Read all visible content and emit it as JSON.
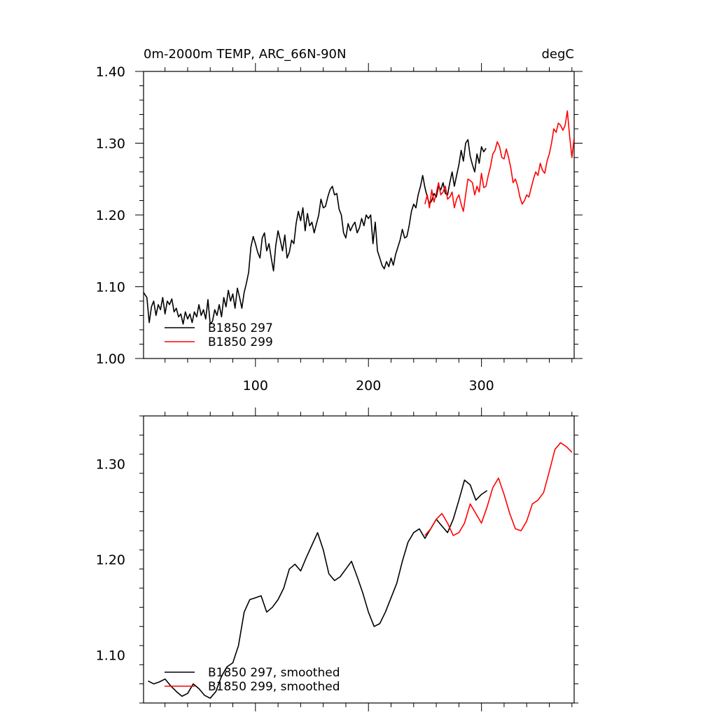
{
  "chart_data": [
    {
      "type": "line",
      "title": "0m-2000m TEMP, ARC_66N-90N",
      "units": "degC",
      "xlabel": "",
      "ylabel": "",
      "xlim": [
        1,
        382
      ],
      "ylim": [
        1.0,
        1.4
      ],
      "xticks": [
        100,
        200,
        300
      ],
      "xtick_labels": [
        "100",
        "200",
        "300"
      ],
      "yticks": [
        1.0,
        1.1,
        1.2,
        1.3,
        1.4
      ],
      "ytick_labels": [
        "1.00",
        "1.10",
        "1.20",
        "1.30",
        "1.40"
      ],
      "legend_position": "bottom-left",
      "series": [
        {
          "name": "B1850 297",
          "color": "#000000",
          "x": [
            1,
            4,
            6,
            8,
            10,
            12,
            14,
            16,
            18,
            20,
            22,
            24,
            26,
            28,
            30,
            32,
            34,
            36,
            38,
            40,
            42,
            44,
            46,
            48,
            50,
            52,
            54,
            56,
            58,
            60,
            62,
            64,
            66,
            68,
            70,
            72,
            74,
            76,
            78,
            80,
            82,
            84,
            86,
            88,
            90,
            92,
            94,
            96,
            98,
            100,
            102,
            104,
            106,
            108,
            110,
            112,
            114,
            116,
            118,
            120,
            122,
            124,
            126,
            128,
            130,
            132,
            134,
            136,
            138,
            140,
            142,
            144,
            146,
            148,
            150,
            152,
            154,
            156,
            158,
            160,
            162,
            164,
            166,
            168,
            170,
            172,
            174,
            176,
            178,
            180,
            182,
            184,
            186,
            188,
            190,
            192,
            194,
            196,
            198,
            200,
            202,
            204,
            206,
            208,
            210,
            212,
            214,
            216,
            218,
            220,
            222,
            224,
            226,
            228,
            230,
            232,
            234,
            236,
            238,
            240,
            242,
            244,
            246,
            248,
            250,
            252,
            254,
            256,
            258,
            260,
            262,
            264,
            266,
            268,
            270,
            272,
            274,
            276,
            278,
            280,
            282,
            284,
            286,
            288,
            290,
            292,
            294,
            296,
            298,
            300,
            302,
            304
          ],
          "y": [
            1.092,
            1.085,
            1.05,
            1.072,
            1.08,
            1.06,
            1.075,
            1.068,
            1.085,
            1.062,
            1.08,
            1.075,
            1.083,
            1.065,
            1.07,
            1.058,
            1.062,
            1.048,
            1.065,
            1.055,
            1.062,
            1.05,
            1.065,
            1.058,
            1.075,
            1.06,
            1.068,
            1.055,
            1.082,
            1.048,
            1.052,
            1.068,
            1.06,
            1.075,
            1.058,
            1.085,
            1.072,
            1.095,
            1.08,
            1.09,
            1.07,
            1.098,
            1.085,
            1.07,
            1.092,
            1.105,
            1.12,
            1.155,
            1.17,
            1.16,
            1.148,
            1.14,
            1.168,
            1.175,
            1.15,
            1.16,
            1.14,
            1.122,
            1.158,
            1.178,
            1.165,
            1.15,
            1.172,
            1.14,
            1.148,
            1.165,
            1.16,
            1.188,
            1.205,
            1.192,
            1.21,
            1.178,
            1.202,
            1.185,
            1.19,
            1.175,
            1.188,
            1.2,
            1.222,
            1.21,
            1.212,
            1.225,
            1.235,
            1.24,
            1.228,
            1.23,
            1.208,
            1.2,
            1.175,
            1.168,
            1.188,
            1.178,
            1.185,
            1.19,
            1.175,
            1.182,
            1.195,
            1.185,
            1.2,
            1.195,
            1.2,
            1.16,
            1.19,
            1.15,
            1.14,
            1.13,
            1.125,
            1.135,
            1.128,
            1.14,
            1.13,
            1.145,
            1.155,
            1.165,
            1.18,
            1.168,
            1.17,
            1.185,
            1.205,
            1.215,
            1.21,
            1.228,
            1.24,
            1.255,
            1.238,
            1.225,
            1.215,
            1.22,
            1.23,
            1.225,
            1.24,
            1.235,
            1.245,
            1.23,
            1.228,
            1.245,
            1.26,
            1.24,
            1.255,
            1.27,
            1.29,
            1.275,
            1.3,
            1.305,
            1.282,
            1.27,
            1.26,
            1.285,
            1.272,
            1.295,
            1.288,
            1.293
          ]
        },
        {
          "name": "B1850 299",
          "color": "#ff0000",
          "x": [
            250,
            252,
            254,
            256,
            258,
            260,
            262,
            264,
            266,
            268,
            270,
            272,
            274,
            276,
            278,
            280,
            282,
            284,
            286,
            288,
            290,
            292,
            294,
            296,
            298,
            300,
            302,
            304,
            306,
            308,
            310,
            312,
            314,
            316,
            318,
            320,
            322,
            324,
            326,
            328,
            330,
            332,
            334,
            336,
            338,
            340,
            342,
            344,
            346,
            348,
            350,
            352,
            354,
            356,
            358,
            360,
            362,
            364,
            366,
            368,
            370,
            372,
            374,
            376,
            378,
            380,
            382
          ],
          "y": [
            1.215,
            1.228,
            1.21,
            1.235,
            1.218,
            1.23,
            1.245,
            1.228,
            1.232,
            1.24,
            1.222,
            1.225,
            1.232,
            1.21,
            1.222,
            1.228,
            1.215,
            1.205,
            1.228,
            1.25,
            1.248,
            1.245,
            1.228,
            1.24,
            1.232,
            1.258,
            1.238,
            1.24,
            1.255,
            1.268,
            1.285,
            1.29,
            1.302,
            1.295,
            1.28,
            1.278,
            1.292,
            1.28,
            1.265,
            1.245,
            1.25,
            1.24,
            1.225,
            1.215,
            1.22,
            1.228,
            1.225,
            1.238,
            1.25,
            1.26,
            1.255,
            1.272,
            1.262,
            1.258,
            1.275,
            1.285,
            1.3,
            1.32,
            1.315,
            1.328,
            1.325,
            1.318,
            1.325,
            1.345,
            1.31,
            1.28,
            1.308
          ]
        }
      ]
    },
    {
      "type": "line",
      "title": "",
      "xlabel": "",
      "ylabel": "",
      "xlim": [
        1,
        382
      ],
      "ylim": [
        1.05,
        1.35
      ],
      "xticks": [
        100,
        200,
        300
      ],
      "xtick_labels": [],
      "yticks": [
        1.1,
        1.2,
        1.3
      ],
      "ytick_labels": [
        "1.10",
        "1.20",
        "1.30"
      ],
      "legend_position": "bottom-left",
      "series": [
        {
          "name": "B1850 297, smoothed",
          "color": "#000000",
          "x": [
            5,
            10,
            15,
            20,
            25,
            30,
            35,
            40,
            45,
            50,
            55,
            60,
            65,
            70,
            75,
            80,
            85,
            90,
            95,
            100,
            105,
            110,
            115,
            120,
            125,
            130,
            135,
            140,
            145,
            150,
            155,
            160,
            165,
            170,
            175,
            180,
            185,
            190,
            195,
            200,
            205,
            210,
            215,
            220,
            225,
            230,
            235,
            240,
            245,
            250,
            255,
            260,
            265,
            270,
            275,
            280,
            285,
            290,
            295,
            300,
            305
          ],
          "y": [
            1.073,
            1.07,
            1.072,
            1.075,
            1.068,
            1.062,
            1.057,
            1.06,
            1.07,
            1.065,
            1.058,
            1.055,
            1.062,
            1.078,
            1.088,
            1.092,
            1.11,
            1.145,
            1.158,
            1.16,
            1.162,
            1.145,
            1.15,
            1.158,
            1.17,
            1.19,
            1.195,
            1.188,
            1.202,
            1.215,
            1.228,
            1.21,
            1.185,
            1.178,
            1.182,
            1.19,
            1.198,
            1.182,
            1.165,
            1.145,
            1.13,
            1.133,
            1.145,
            1.16,
            1.175,
            1.198,
            1.218,
            1.228,
            1.232,
            1.222,
            1.232,
            1.242,
            1.235,
            1.228,
            1.242,
            1.262,
            1.283,
            1.278,
            1.262,
            1.268,
            1.272
          ]
        },
        {
          "name": "B1850 299, smoothed",
          "color": "#ff0000",
          "x": [
            250,
            255,
            260,
            265,
            270,
            275,
            280,
            285,
            290,
            295,
            300,
            305,
            310,
            315,
            320,
            325,
            330,
            335,
            340,
            345,
            350,
            355,
            360,
            365,
            370,
            375,
            380
          ],
          "y": [
            1.225,
            1.232,
            1.242,
            1.248,
            1.238,
            1.225,
            1.228,
            1.238,
            1.258,
            1.248,
            1.238,
            1.255,
            1.275,
            1.285,
            1.268,
            1.248,
            1.232,
            1.23,
            1.24,
            1.258,
            1.262,
            1.27,
            1.292,
            1.315,
            1.322,
            1.318,
            1.312
          ]
        }
      ]
    }
  ]
}
